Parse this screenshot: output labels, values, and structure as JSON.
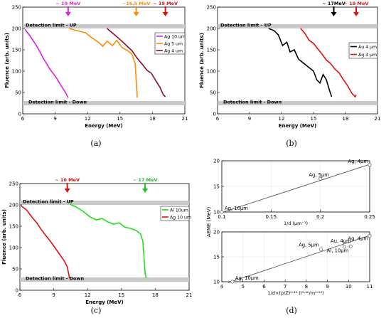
{
  "captions": [
    "(a)",
    "(b)",
    "(c)",
    "(d)"
  ],
  "detection_labels": {
    "up": "Detection limit - UP",
    "down": "Detection limit - Down"
  },
  "chart_data": [
    {
      "type": "line",
      "panel": "(a)",
      "xlabel": "Energy (MeV)",
      "ylabel": "Fluence (arb. units)",
      "xlim": [
        6,
        21
      ],
      "ylim": [
        0,
        250
      ],
      "xticks": [
        6,
        9,
        12,
        15,
        18,
        21
      ],
      "yticks": [
        0,
        50,
        100,
        150,
        200,
        250
      ],
      "legend_position": "top-right",
      "annotations": [
        {
          "text": "~ 10 MeV",
          "x": 10.2,
          "color": "#e020e0"
        },
        {
          "text": "~16.5 MeV",
          "x": 16.5,
          "color": "#ff8c00"
        },
        {
          "text": "~ 19 MeV",
          "x": 19.2,
          "color": "#e01010"
        }
      ],
      "series": [
        {
          "name": "Ag 10 um",
          "color": "#e020e0",
          "x": [
            6.2,
            6.6,
            7.0,
            7.3,
            7.6,
            7.9,
            8.2,
            8.5,
            8.8,
            9.1,
            9.4,
            9.7,
            10.0,
            10.2
          ],
          "y": [
            198,
            185,
            170,
            158,
            145,
            130,
            118,
            105,
            95,
            85,
            72,
            60,
            48,
            38
          ]
        },
        {
          "name": "Ag 5 um",
          "color": "#ff8c00",
          "x": [
            10.3,
            11.0,
            11.8,
            12.4,
            13.0,
            13.4,
            13.8,
            14.3,
            14.7,
            15.2,
            15.7,
            16.1,
            16.4,
            16.5,
            16.6
          ],
          "y": [
            200,
            195,
            190,
            178,
            168,
            158,
            170,
            160,
            172,
            155,
            148,
            140,
            118,
            80,
            38
          ]
        },
        {
          "name": "Ag 4 um",
          "color": "#8b0a2a",
          "x": [
            13.8,
            14.5,
            15.1,
            15.6,
            16.1,
            16.6,
            17.1,
            17.5,
            17.9,
            18.3,
            18.7,
            19.0,
            19.2
          ],
          "y": [
            200,
            185,
            172,
            160,
            148,
            130,
            115,
            102,
            95,
            78,
            62,
            45,
            40
          ]
        }
      ]
    },
    {
      "type": "line",
      "panel": "(b)",
      "xlabel": "Energy (MeV)",
      "ylabel": "Fluence (arb. units)",
      "xlim": [
        6,
        21
      ],
      "ylim": [
        0,
        250
      ],
      "xticks": [
        6,
        9,
        12,
        15,
        18,
        21
      ],
      "yticks": [
        0,
        50,
        100,
        150,
        200,
        250
      ],
      "legend_position": "right",
      "annotations": [
        {
          "text": "~ 17MeV",
          "x": 16.9,
          "color": "#000000"
        },
        {
          "text": "~ 19 MeV",
          "x": 19.0,
          "color": "#e01010"
        }
      ],
      "series": [
        {
          "name": "Au 4 µm",
          "color": "#000000",
          "x": [
            10.8,
            11.3,
            11.7,
            12.1,
            12.5,
            12.8,
            13.2,
            13.6,
            14.0,
            14.5,
            15.0,
            15.3,
            15.6,
            15.9,
            16.2,
            16.5,
            16.7
          ],
          "y": [
            200,
            195,
            185,
            160,
            168,
            145,
            150,
            128,
            120,
            110,
            100,
            80,
            72,
            92,
            80,
            55,
            40
          ]
        },
        {
          "name": "Ag 4 µm",
          "color": "#e01010",
          "x": [
            13.8,
            14.2,
            14.6,
            15.0,
            15.4,
            15.8,
            16.2,
            16.6,
            17.0,
            17.4,
            17.8,
            18.2,
            18.6,
            18.9,
            19.0
          ],
          "y": [
            200,
            188,
            172,
            165,
            152,
            140,
            126,
            118,
            105,
            96,
            80,
            66,
            48,
            40,
            44
          ]
        }
      ]
    },
    {
      "type": "line",
      "panel": "(c)",
      "xlabel": "Energy (MeV)",
      "ylabel": "Fluence (arb. units)",
      "xlim": [
        6,
        21
      ],
      "ylim": [
        0,
        250
      ],
      "xticks": [
        6,
        9,
        12,
        15,
        18,
        21
      ],
      "yticks": [
        0,
        50,
        100,
        150,
        200,
        250
      ],
      "legend_position": "right",
      "annotations": [
        {
          "text": "~ 10 MeV",
          "x": 10.2,
          "color": "#e01010"
        },
        {
          "text": "~ 17 MeV",
          "x": 17.1,
          "color": "#20c020"
        }
      ],
      "series": [
        {
          "name": "Al 10um",
          "color": "#20e020",
          "x": [
            10.4,
            11.0,
            11.6,
            12.2,
            12.8,
            13.3,
            13.8,
            14.3,
            14.8,
            15.3,
            15.8,
            16.3,
            16.7,
            16.9,
            17.0,
            17.1,
            17.2
          ],
          "y": [
            202,
            195,
            185,
            172,
            165,
            168,
            160,
            155,
            158,
            148,
            145,
            140,
            132,
            115,
            80,
            40,
            28
          ]
        },
        {
          "name": "Ag 10 um",
          "color": "#e01010",
          "x": [
            6.1,
            6.6,
            7.1,
            7.5,
            7.9,
            8.3,
            8.7,
            9.1,
            9.5,
            9.9,
            10.2,
            10.4
          ],
          "y": [
            198,
            188,
            170,
            158,
            142,
            128,
            115,
            100,
            85,
            70,
            55,
            28
          ]
        }
      ]
    },
    {
      "type": "scatter",
      "panel": "(d) top",
      "xlabel": "1/d (μm⁻¹)",
      "ylabel": "AEME (MeV)",
      "xlim": [
        0.1,
        0.25
      ],
      "ylim": [
        10,
        20
      ],
      "xticks": [
        0.1,
        0.15,
        0.2,
        0.25
      ],
      "yticks": [
        10,
        15,
        20
      ],
      "grid": true,
      "points": [
        {
          "label": "Ag, 10μm",
          "x": 0.1,
          "y": 10.0
        },
        {
          "label": "Ag, 5μm",
          "x": 0.2,
          "y": 16.5
        },
        {
          "label": "Ag, 4μm",
          "x": 0.25,
          "y": 19.2
        }
      ],
      "fit_line": {
        "x": [
          0.1,
          0.25
        ],
        "y": [
          9.9,
          19.3
        ]
      }
    },
    {
      "type": "scatter",
      "panel": "(d) bottom",
      "xlabel": "1/d×(ρ/Z)⁰·⁴⁶ (I⁰·⁴⁶/m⁰·⁵⁴)",
      "ylabel": "AEME (MeV)",
      "xlim": [
        4,
        11
      ],
      "ylim": [
        10,
        20
      ],
      "xticks": [
        4,
        5,
        6,
        7,
        8,
        9,
        10,
        11
      ],
      "yticks": [
        10,
        15,
        20
      ],
      "grid": true,
      "points": [
        {
          "label": "Ag, 10μm",
          "x": 4.5,
          "y": 10.0
        },
        {
          "label": "Ag, 5μm",
          "x": 8.7,
          "y": 16.5
        },
        {
          "label": "Au, 4μm",
          "x": 9.8,
          "y": 17.0
        },
        {
          "label": "Al, 10μm",
          "x": 10.1,
          "y": 17.1
        },
        {
          "label": "Ag, 4μm",
          "x": 11.0,
          "y": 19.2
        }
      ],
      "fit_line": {
        "x": [
          4.3,
          11.0
        ],
        "y": [
          9.8,
          19.3
        ]
      }
    }
  ]
}
